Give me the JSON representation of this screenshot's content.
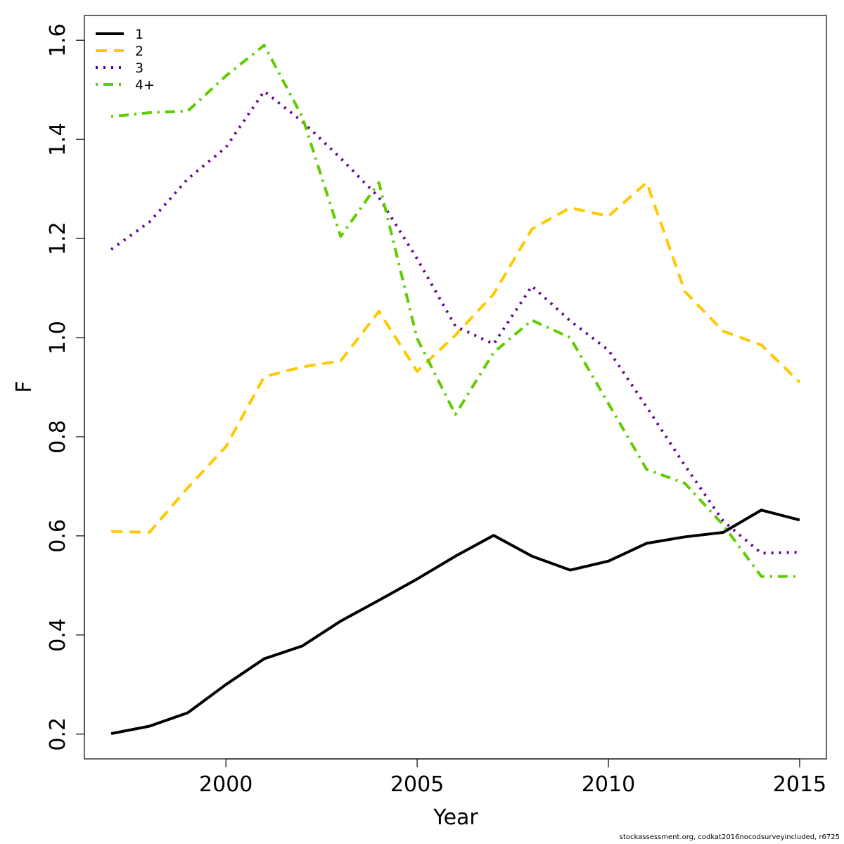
{
  "chart_data": {
    "type": "line",
    "title": "",
    "xlabel": "Year",
    "ylabel": "F",
    "xlim": [
      1996.3,
      2015.7
    ],
    "ylim": [
      0.15,
      1.65
    ],
    "x_ticks": [
      2000,
      2005,
      2010,
      2015
    ],
    "y_ticks": [
      0.2,
      0.4,
      0.6,
      0.8,
      1.0,
      1.2,
      1.4,
      1.6
    ],
    "y_tick_labels": [
      "0.2",
      "0.4",
      "0.6",
      "0.8",
      "1.0",
      "1.2",
      "1.4",
      "1.6"
    ],
    "grid": false,
    "legend_position": "top-left",
    "x": [
      1997,
      1998,
      1999,
      2000,
      2001,
      2002,
      2003,
      2004,
      2005,
      2006,
      2007,
      2008,
      2009,
      2010,
      2011,
      2012,
      2013,
      2014,
      2015
    ],
    "series": [
      {
        "name": "1",
        "color": "#000000",
        "dash": "solid",
        "values": [
          0.201,
          0.216,
          0.243,
          0.3,
          0.352,
          0.378,
          0.428,
          0.47,
          0.513,
          0.559,
          0.601,
          0.559,
          0.531,
          0.549,
          0.585,
          0.598,
          0.607,
          0.652,
          0.632
        ]
      },
      {
        "name": "2",
        "color": "#FFC800",
        "dash": "dashed",
        "values": [
          0.609,
          0.607,
          0.697,
          0.78,
          0.921,
          0.941,
          0.953,
          1.053,
          0.932,
          1.005,
          1.088,
          1.219,
          1.262,
          1.245,
          1.313,
          1.093,
          1.013,
          0.985,
          0.91
        ]
      },
      {
        "name": "3",
        "color": "#660099",
        "dash": "dotted",
        "values": [
          1.178,
          1.233,
          1.32,
          1.384,
          1.497,
          1.436,
          1.362,
          1.283,
          1.159,
          1.023,
          0.987,
          1.104,
          1.034,
          0.975,
          0.86,
          0.742,
          0.63,
          0.565,
          0.567
        ]
      },
      {
        "name": "4+",
        "color": "#5FCC00",
        "dash": "dotdash",
        "values": [
          1.446,
          1.454,
          1.457,
          1.528,
          1.59,
          1.445,
          1.204,
          1.313,
          0.998,
          0.845,
          0.97,
          1.035,
          1.0,
          0.867,
          0.734,
          0.706,
          0.622,
          0.518,
          0.518
        ]
      }
    ]
  },
  "footer": "stockassessment.org, codkat2016nocodsurveyincluded, r6725"
}
